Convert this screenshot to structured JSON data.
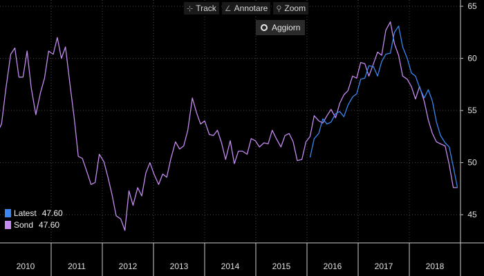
{
  "toolbar": {
    "track_label": "Track",
    "annotate_label": "Annotare",
    "zoom_label": "Zoom",
    "refresh_label": "Aggiorn"
  },
  "colors": {
    "background": "#000000",
    "latest": "#3b86f0",
    "sond": "#c58bf2",
    "grid": "#4a4a4a"
  },
  "legend": [
    {
      "name": "Latest",
      "value": "47.60",
      "color": "#3b86f0"
    },
    {
      "name": "Sond",
      "value": "47.60",
      "color": "#c58bf2"
    }
  ],
  "chart_data": {
    "type": "line",
    "title": "",
    "xlabel": "",
    "ylabel": "",
    "y_ticks": [
      45,
      50,
      55,
      60,
      65
    ],
    "x_ticks": [
      "2010",
      "2011",
      "2012",
      "2013",
      "2014",
      "2015",
      "2016",
      "2017",
      "2018"
    ],
    "xlim": [
      2010.0,
      2019.0
    ],
    "ylim": [
      42.3,
      65.6
    ],
    "grid": "horizontal dotted",
    "legend_placement": "bottom-left",
    "series": [
      {
        "name": "Sond",
        "x": [
          2009.95,
          2010.03,
          2010.12,
          2010.21,
          2010.29,
          2010.37,
          2010.45,
          2010.53,
          2010.61,
          2010.7,
          2010.79,
          2010.87,
          2010.95,
          2011.04,
          2011.12,
          2011.2,
          2011.28,
          2011.37,
          2011.45,
          2011.53,
          2011.61,
          2011.7,
          2011.78,
          2011.86,
          2011.94,
          2012.03,
          2012.11,
          2012.19,
          2012.27,
          2012.36,
          2012.44,
          2012.52,
          2012.6,
          2012.69,
          2012.77,
          2012.85,
          2012.93,
          2013.01,
          2013.1,
          2013.18,
          2013.26,
          2013.34,
          2013.43,
          2013.51,
          2013.59,
          2013.67,
          2013.76,
          2013.84,
          2013.92,
          2014.0,
          2014.09,
          2014.17,
          2014.25,
          2014.33,
          2014.41,
          2014.5,
          2014.58,
          2014.66,
          2014.74,
          2014.83,
          2014.91,
          2014.99,
          2015.07,
          2015.16,
          2015.24,
          2015.32,
          2015.4,
          2015.49,
          2015.57,
          2015.65,
          2015.73,
          2015.81,
          2015.9,
          2015.98,
          2016.06,
          2016.14,
          2016.23,
          2016.31,
          2016.39,
          2016.47,
          2016.56,
          2016.64,
          2016.72,
          2016.8,
          2016.89,
          2016.97,
          2017.05,
          2017.13,
          2017.21,
          2017.3,
          2017.38,
          2017.46,
          2017.54,
          2017.63,
          2017.71,
          2017.79,
          2017.87,
          2017.96,
          2018.04,
          2018.12,
          2018.2,
          2018.29,
          2018.37,
          2018.45,
          2018.53,
          2018.61,
          2018.7,
          2018.78,
          2018.86,
          2018.94
        ],
        "y": [
          52.9,
          53.7,
          57.3,
          60.4,
          61.0,
          58.2,
          58.2,
          60.7,
          57.2,
          54.6,
          56.7,
          58.1,
          60.7,
          60.4,
          62.0,
          60.0,
          61.1,
          57.4,
          54.3,
          50.6,
          50.4,
          49.1,
          47.9,
          48.1,
          50.8,
          50.1,
          48.6,
          46.9,
          44.9,
          44.6,
          43.5,
          47.3,
          45.9,
          47.6,
          46.8,
          49.0,
          50.0,
          48.9,
          47.9,
          48.9,
          48.6,
          50.4,
          52.0,
          51.3,
          51.6,
          53.1,
          56.2,
          54.8,
          53.7,
          54.0,
          52.7,
          52.6,
          53.1,
          51.9,
          50.3,
          52.1,
          49.9,
          51.1,
          51.1,
          50.8,
          52.3,
          52.1,
          51.5,
          51.9,
          51.8,
          53.1,
          52.3,
          51.5,
          52.6,
          52.8,
          52.0,
          50.2,
          50.3,
          52.0,
          52.5,
          54.5,
          54.0,
          53.8,
          54.5,
          55.1,
          54.3,
          55.7,
          56.5,
          56.9,
          58.3,
          58.1,
          59.6,
          59.5,
          58.3,
          59.5,
          60.6,
          60.3,
          62.7,
          63.5,
          61.4,
          60.3,
          58.3,
          58.0,
          57.3,
          56.1,
          57.3,
          55.9,
          54.1,
          52.8,
          52.0,
          51.8,
          51.6,
          49.8,
          47.6,
          47.6
        ]
      },
      {
        "name": "Latest",
        "x": [
          2016.06,
          2016.14,
          2016.23,
          2016.31,
          2016.39,
          2016.47,
          2016.56,
          2016.64,
          2016.72,
          2016.8,
          2016.89,
          2016.97,
          2017.05,
          2017.13,
          2017.21,
          2017.3,
          2017.38,
          2017.46,
          2017.54,
          2017.63,
          2017.71,
          2017.79,
          2017.87,
          2017.96,
          2018.04,
          2018.12,
          2018.2,
          2018.29,
          2018.37,
          2018.45,
          2018.53,
          2018.61,
          2018.7,
          2018.78,
          2018.86,
          2018.94
        ],
        "y": [
          50.5,
          52.3,
          52.8,
          54.2,
          53.7,
          53.9,
          54.7,
          54.9,
          54.4,
          55.5,
          56.3,
          56.6,
          58.0,
          58.1,
          59.3,
          59.2,
          58.3,
          59.7,
          60.4,
          60.5,
          62.5,
          63.1,
          61.1,
          60.0,
          58.6,
          58.3,
          57.2,
          56.2,
          57.0,
          55.9,
          53.9,
          52.6,
          51.9,
          51.5,
          49.6,
          47.6
        ]
      }
    ]
  }
}
